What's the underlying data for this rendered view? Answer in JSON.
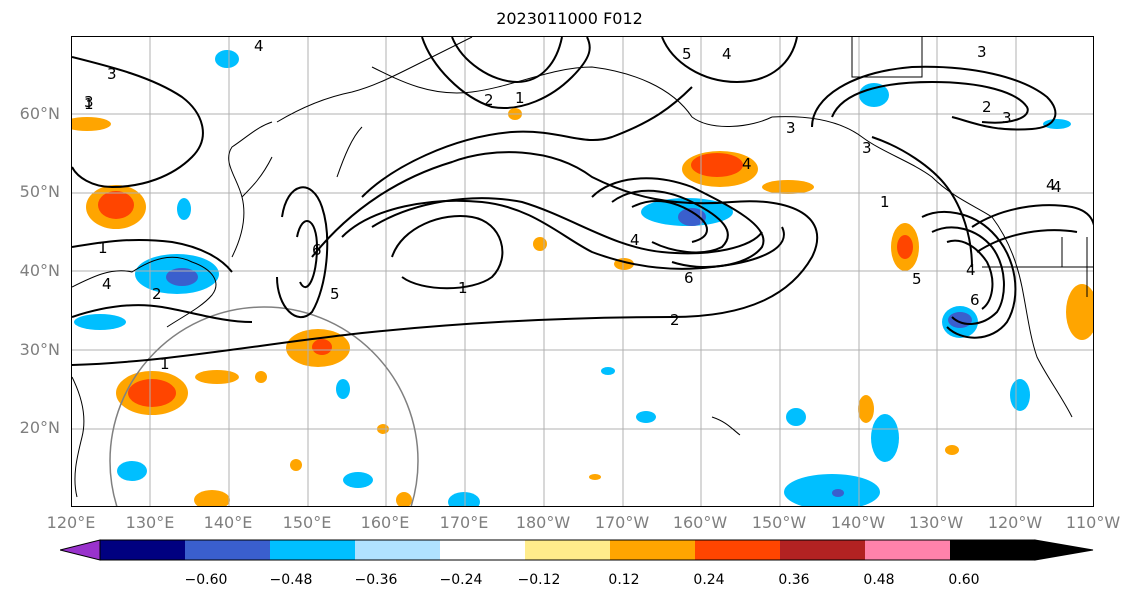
{
  "title": "2023011000 F012",
  "lat_labels": [
    "60°N",
    "50°N",
    "40°N",
    "30°N",
    "20°N"
  ],
  "lon_labels": [
    "120°E",
    "130°E",
    "140°E",
    "150°E",
    "160°E",
    "170°E",
    "180°W",
    "170°W",
    "160°W",
    "150°W",
    "140°W",
    "130°W",
    "120°W",
    "110°W"
  ],
  "contour_labels": [
    "3",
    "4",
    "3",
    "2",
    "1",
    "5",
    "4",
    "3",
    "4",
    "2",
    "3",
    "3",
    "6",
    "5",
    "1",
    "1",
    "4",
    "6",
    "2",
    "1",
    "4",
    "4",
    "4",
    "5",
    "6",
    "1",
    "2",
    "4",
    "1",
    "3"
  ],
  "colorbar": {
    "ticks": [
      "−0.60",
      "−0.48",
      "−0.36",
      "−0.24",
      "−0.12",
      "0.12",
      "0.24",
      "0.36",
      "0.48",
      "0.60"
    ],
    "colors": [
      "#9932cc",
      "#000080",
      "#3a5fcd",
      "#00bfff",
      "#b0e2ff",
      "#ffffff",
      "#ffec8b",
      "#ffa500",
      "#ff4500",
      "#b22222",
      "#ff82ab"
    ]
  },
  "legend_colors": {
    "contour": "#000000",
    "grid": "#b0b0b0",
    "coast": "#000000",
    "circle": "#808080"
  }
}
